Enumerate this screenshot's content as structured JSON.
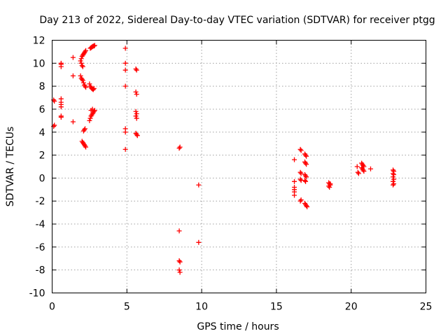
{
  "chart_data": {
    "type": "scatter",
    "title": "Day 213 of 2022, Sidereal Day-to-day VTEC variation (SDTVAR) for receiver ptgg",
    "xlabel": "GPS time / hours",
    "ylabel": "SDTVAR / TECUs",
    "xlim": [
      0,
      25
    ],
    "ylim": [
      -10,
      12
    ],
    "xticks": [
      0,
      5,
      10,
      15,
      20,
      25
    ],
    "yticks": [
      -10,
      -8,
      -6,
      -4,
      -2,
      0,
      2,
      4,
      6,
      8,
      10,
      12
    ],
    "xtick_labels": [
      "0",
      "5",
      "10",
      "15",
      "20",
      "25"
    ],
    "ytick_labels": [
      "-10",
      "-8",
      "-6",
      "-4",
      "-2",
      "0",
      "2",
      "4",
      "6",
      "8",
      "10",
      "12"
    ],
    "grid": true,
    "marker": "plus",
    "marker_color": "#ff0000",
    "series": [
      {
        "name": "SDTVAR",
        "points": [
          [
            0.1,
            6.8
          ],
          [
            0.15,
            6.7
          ],
          [
            0.1,
            4.5
          ],
          [
            0.15,
            4.6
          ],
          [
            0.6,
            9.7
          ],
          [
            0.6,
            9.9
          ],
          [
            0.6,
            10.0
          ],
          [
            0.6,
            6.9
          ],
          [
            0.6,
            6.6
          ],
          [
            0.6,
            6.4
          ],
          [
            0.6,
            6.2
          ],
          [
            0.6,
            5.4
          ],
          [
            0.6,
            5.3
          ],
          [
            1.4,
            10.5
          ],
          [
            1.4,
            8.9
          ],
          [
            1.4,
            4.9
          ],
          [
            1.9,
            10.2
          ],
          [
            1.95,
            10.4
          ],
          [
            2.0,
            10.6
          ],
          [
            2.05,
            10.7
          ],
          [
            2.1,
            10.8
          ],
          [
            2.15,
            10.9
          ],
          [
            2.2,
            11.0
          ],
          [
            2.25,
            11.1
          ],
          [
            1.95,
            10.0
          ],
          [
            2.0,
            9.8
          ],
          [
            2.05,
            9.7
          ],
          [
            1.9,
            8.9
          ],
          [
            1.95,
            8.7
          ],
          [
            2.0,
            8.6
          ],
          [
            2.05,
            8.5
          ],
          [
            2.1,
            8.3
          ],
          [
            2.15,
            8.1
          ],
          [
            2.2,
            8.0
          ],
          [
            2.25,
            7.9
          ],
          [
            2.0,
            3.2
          ],
          [
            2.05,
            3.1
          ],
          [
            2.1,
            3.0
          ],
          [
            2.15,
            2.9
          ],
          [
            2.2,
            2.8
          ],
          [
            2.25,
            2.7
          ],
          [
            2.1,
            4.1
          ],
          [
            2.15,
            4.2
          ],
          [
            2.2,
            4.3
          ],
          [
            2.55,
            11.3
          ],
          [
            2.6,
            11.35
          ],
          [
            2.65,
            11.4
          ],
          [
            2.7,
            11.45
          ],
          [
            2.75,
            11.5
          ],
          [
            2.8,
            11.5
          ],
          [
            2.85,
            11.55
          ],
          [
            2.5,
            8.2
          ],
          [
            2.55,
            8.0
          ],
          [
            2.6,
            7.9
          ],
          [
            2.65,
            7.8
          ],
          [
            2.7,
            7.75
          ],
          [
            2.75,
            7.7
          ],
          [
            2.8,
            7.8
          ],
          [
            2.5,
            5.0
          ],
          [
            2.55,
            5.2
          ],
          [
            2.6,
            5.4
          ],
          [
            2.65,
            5.5
          ],
          [
            2.7,
            5.6
          ],
          [
            2.75,
            5.7
          ],
          [
            2.8,
            5.8
          ],
          [
            2.85,
            5.9
          ],
          [
            2.6,
            5.9
          ],
          [
            2.7,
            6.0
          ],
          [
            4.9,
            11.3
          ],
          [
            4.9,
            10.0
          ],
          [
            4.9,
            9.4
          ],
          [
            4.9,
            8.0
          ],
          [
            4.9,
            4.3
          ],
          [
            4.9,
            4.0
          ],
          [
            4.9,
            2.5
          ],
          [
            5.6,
            9.5
          ],
          [
            5.65,
            9.4
          ],
          [
            5.6,
            7.5
          ],
          [
            5.65,
            7.3
          ],
          [
            5.6,
            5.8
          ],
          [
            5.65,
            5.6
          ],
          [
            5.6,
            5.4
          ],
          [
            5.65,
            5.2
          ],
          [
            5.6,
            3.9
          ],
          [
            5.65,
            3.8
          ],
          [
            5.7,
            3.7
          ],
          [
            8.5,
            2.6
          ],
          [
            8.55,
            2.7
          ],
          [
            8.5,
            -4.6
          ],
          [
            8.5,
            -7.2
          ],
          [
            8.55,
            -7.3
          ],
          [
            8.5,
            -8.0
          ],
          [
            8.55,
            -8.2
          ],
          [
            9.8,
            -0.6
          ],
          [
            9.8,
            -5.6
          ],
          [
            16.2,
            1.6
          ],
          [
            16.2,
            -0.3
          ],
          [
            16.2,
            -0.8
          ],
          [
            16.2,
            -1.0
          ],
          [
            16.2,
            -1.2
          ],
          [
            16.2,
            -1.5
          ],
          [
            16.6,
            2.5
          ],
          [
            16.65,
            2.4
          ],
          [
            16.6,
            0.5
          ],
          [
            16.65,
            0.4
          ],
          [
            16.6,
            -0.1
          ],
          [
            16.65,
            -0.2
          ],
          [
            16.6,
            -2.0
          ],
          [
            16.65,
            -1.9
          ],
          [
            16.9,
            2.1
          ],
          [
            16.95,
            2.0
          ],
          [
            17.0,
            1.9
          ],
          [
            16.9,
            1.4
          ],
          [
            16.95,
            1.3
          ],
          [
            17.0,
            1.2
          ],
          [
            16.9,
            0.3
          ],
          [
            16.95,
            0.2
          ],
          [
            17.0,
            0.1
          ],
          [
            16.9,
            -0.2
          ],
          [
            16.95,
            -0.3
          ],
          [
            16.9,
            -2.2
          ],
          [
            16.95,
            -2.3
          ],
          [
            17.0,
            -2.4
          ],
          [
            17.05,
            -2.5
          ],
          [
            18.5,
            -0.4
          ],
          [
            18.55,
            -0.5
          ],
          [
            18.6,
            -0.6
          ],
          [
            18.5,
            -0.7
          ],
          [
            18.55,
            -0.8
          ],
          [
            18.6,
            -0.5
          ],
          [
            20.4,
            1.0
          ],
          [
            20.45,
            0.5
          ],
          [
            20.5,
            0.4
          ],
          [
            20.7,
            1.3
          ],
          [
            20.75,
            1.2
          ],
          [
            20.8,
            1.1
          ],
          [
            20.85,
            1.0
          ],
          [
            20.7,
            0.9
          ],
          [
            20.75,
            0.8
          ],
          [
            20.8,
            0.7
          ],
          [
            20.85,
            0.6
          ],
          [
            21.3,
            0.8
          ],
          [
            22.8,
            0.7
          ],
          [
            22.85,
            0.6
          ],
          [
            22.8,
            0.4
          ],
          [
            22.85,
            0.3
          ],
          [
            22.8,
            0.1
          ],
          [
            22.85,
            -0.1
          ],
          [
            22.8,
            -0.3
          ],
          [
            22.85,
            -0.5
          ],
          [
            22.8,
            -0.6
          ]
        ]
      }
    ]
  }
}
